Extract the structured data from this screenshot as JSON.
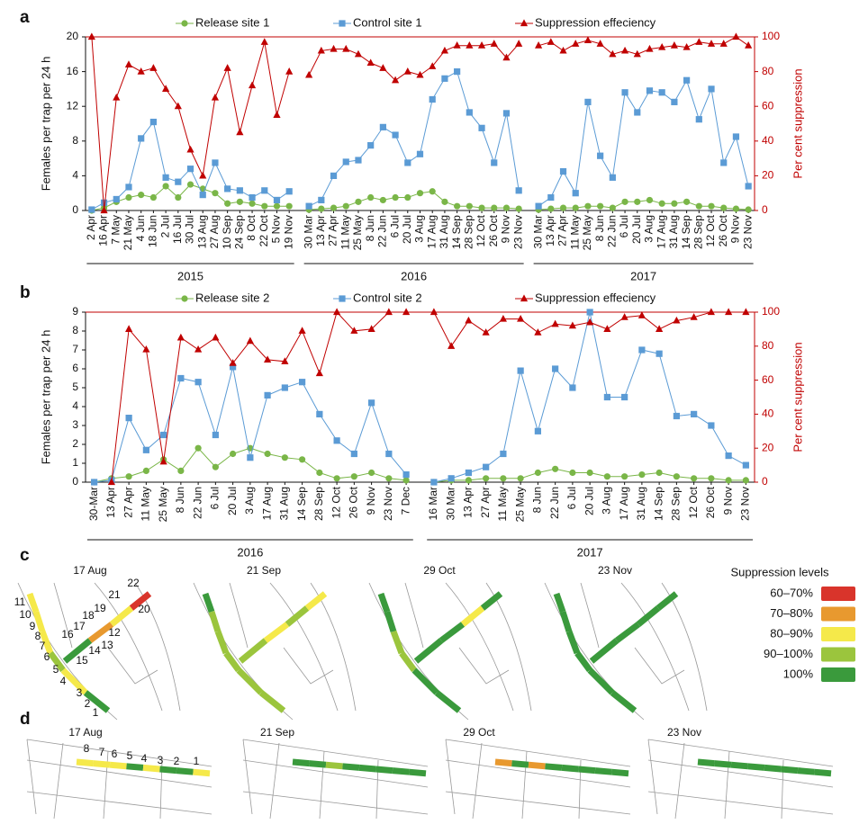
{
  "chart_data": [
    {
      "type": "line",
      "panel_label": "a",
      "y_label": "Females per trap per 24 h",
      "y2_label": "Per cent suppression",
      "ylim": [
        0,
        20
      ],
      "yticks": [
        0,
        4,
        8,
        12,
        16,
        20
      ],
      "y2lim": [
        0,
        100
      ],
      "y2ticks": [
        0,
        20,
        40,
        60,
        80,
        100
      ],
      "groups": [
        {
          "label": "2015",
          "categories": [
            "2 Apr",
            "16 Apr",
            "7 May",
            "21 May",
            "4 Jun",
            "18 Jun",
            "2 Jul",
            "16 Jul",
            "30 Jul",
            "13 Aug",
            "27 Aug",
            "10 Sep",
            "24 Sep",
            "8 Oct",
            "22 Oct",
            "5 Nov",
            "19 Nov"
          ]
        },
        {
          "label": "2016",
          "categories": [
            "30 Mar",
            "13 Apr",
            "27 Apr",
            "11 May",
            "25 May",
            "8 Jun",
            "22 Jun",
            "6 Jul",
            "20 Jul",
            "3 Aug",
            "17 Aug",
            "31 Aug",
            "14 Sep",
            "28 Sep",
            "12 Oct",
            "26 Oct",
            "9 Nov",
            "23 Nov"
          ]
        },
        {
          "label": "2017",
          "categories": [
            "30 Mar",
            "13 Apr",
            "27 Apr",
            "11 May",
            "25 May",
            "8 Jun",
            "22 Jun",
            "6 Jul",
            "20 Jul",
            "3 Aug",
            "17 Aug",
            "31 Aug",
            "14 Sep",
            "28 Sep",
            "12 Oct",
            "26 Oct",
            "9 Nov",
            "23 Nov"
          ]
        }
      ],
      "series": [
        {
          "name": "Release site 1",
          "color": "#7ab648",
          "marker": "circle",
          "axis": "y",
          "values": [
            [
              0,
              0.3,
              1,
              1.5,
              1.8,
              1.5,
              2.8,
              1.5,
              3,
              2.5,
              2,
              0.8,
              1,
              0.8,
              0.5,
              0.5,
              0.5
            ],
            [
              0.1,
              0.2,
              0.3,
              0.5,
              1,
              1.5,
              1.2,
              1.5,
              1.5,
              2,
              2.2,
              1,
              0.5,
              0.5,
              0.3,
              0.3,
              0.3,
              0.2
            ],
            [
              0.1,
              0.2,
              0.3,
              0.3,
              0.5,
              0.5,
              0.3,
              1,
              1,
              1.2,
              0.8,
              0.8,
              1,
              0.5,
              0.5,
              0.3,
              0.2,
              0.1
            ]
          ]
        },
        {
          "name": "Control site 1",
          "color": "#5b9bd5",
          "marker": "square",
          "axis": "y",
          "values": [
            [
              0.1,
              0.9,
              1.3,
              2.7,
              8.3,
              10.2,
              3.8,
              3.3,
              4.8,
              1.8,
              5.5,
              2.5,
              2.3,
              1.5,
              2.3,
              1.2,
              2.2
            ],
            [
              0.5,
              1.2,
              4,
              5.6,
              5.8,
              7.5,
              9.6,
              8.7,
              5.5,
              6.5,
              12.8,
              15.2,
              16,
              11.3,
              9.5,
              5.5,
              11.2,
              2.3
            ],
            [
              0.5,
              1.5,
              4.5,
              2,
              12.5,
              6.3,
              3.8,
              13.6,
              11.3,
              13.8,
              13.6,
              12.5,
              15,
              10.5,
              14,
              5.5,
              8.5,
              2.8
            ]
          ]
        },
        {
          "name": "Suppression effeciency",
          "color": "#c00000",
          "marker": "triangle",
          "axis": "y2",
          "values": [
            [
              100,
              0,
              65,
              84,
              80,
              82,
              70,
              60,
              35,
              20,
              65,
              82,
              45,
              72,
              97,
              55,
              80
            ],
            [
              78,
              92,
              93,
              93,
              90,
              85,
              82,
              75,
              80,
              78,
              83,
              92,
              95,
              95,
              95,
              96,
              88,
              96
            ],
            [
              95,
              97,
              92,
              96,
              98,
              96,
              90,
              92,
              90,
              93,
              94,
              95,
              94,
              97,
              96,
              96,
              100,
              95
            ]
          ]
        }
      ]
    },
    {
      "type": "line",
      "panel_label": "b",
      "y_label": "Females per trap per 24 h",
      "y2_label": "Per cent suppression",
      "ylim": [
        0,
        9
      ],
      "yticks": [
        0,
        1,
        2,
        3,
        4,
        5,
        6,
        7,
        8,
        9
      ],
      "y2lim": [
        0,
        100
      ],
      "y2ticks": [
        0,
        20,
        40,
        60,
        80,
        100
      ],
      "groups": [
        {
          "label": "2016",
          "categories": [
            "30-Mar",
            "13 Apr",
            "27 Apr",
            "11 May",
            "25 May",
            "8 Jun",
            "22 Jun",
            "6 Jul",
            "20 Jul",
            "3 Aug",
            "17 Aug",
            "31 Aug",
            "14 Sep",
            "28 Sep",
            "12 Oct",
            "26 Oct",
            "9 Nov",
            "23 Nov",
            "7 Dec"
          ]
        },
        {
          "label": "2017",
          "categories": [
            "16 Mar",
            "30 Mar",
            "13 Apr",
            "27 Apr",
            "11 May",
            "25 May",
            "8 Jun",
            "22 Jun",
            "6 Jul",
            "20 Jul",
            "3 Aug",
            "17 Aug",
            "31 Aug",
            "14 Sep",
            "28 Sep",
            "12 Oct",
            "26 Oct",
            "9 Nov",
            "23 Nov"
          ]
        }
      ],
      "series": [
        {
          "name": "Release site 2",
          "color": "#7ab648",
          "marker": "circle",
          "axis": "y",
          "values": [
            [
              0,
              0.2,
              0.3,
              0.6,
              1.2,
              0.6,
              1.8,
              0.8,
              1.5,
              1.8,
              1.5,
              1.3,
              1.2,
              0.5,
              0.2,
              0.3,
              0.5,
              0.2,
              0.1
            ],
            [
              0,
              0.1,
              0.1,
              0.2,
              0.2,
              0.2,
              0.5,
              0.7,
              0.5,
              0.5,
              0.3,
              0.3,
              0.4,
              0.5,
              0.3,
              0.2,
              0.2,
              0.1,
              0.1
            ]
          ]
        },
        {
          "name": "Control site 2",
          "color": "#5b9bd5",
          "marker": "square",
          "axis": "y",
          "values": [
            [
              0,
              0.1,
              3.4,
              1.7,
              2.5,
              5.5,
              5.3,
              2.5,
              6.1,
              1.3,
              4.6,
              5,
              5.3,
              3.6,
              2.2,
              1.5,
              4.2,
              1.5,
              0.4
            ],
            [
              0,
              0.2,
              0.5,
              0.8,
              1.5,
              5.9,
              2.7,
              6,
              5,
              9,
              4.5,
              4.5,
              7,
              6.8,
              3.5,
              3.6,
              3,
              1.4,
              0.9
            ]
          ]
        },
        {
          "name": "Suppression effeciency",
          "color": "#c00000",
          "marker": "triangle",
          "axis": "y2",
          "values": [
            [
              null,
              0,
              90,
              78,
              12,
              85,
              78,
              85,
              70,
              83,
              72,
              71,
              89,
              64,
              100,
              89,
              90,
              100,
              100
            ],
            [
              100,
              80,
              95,
              88,
              96,
              96,
              88,
              93,
              92,
              94,
              90,
              97,
              98,
              90,
              95,
              97,
              100,
              100,
              100
            ]
          ]
        }
      ]
    }
  ],
  "panel_c": {
    "label": "c",
    "dates": [
      "17 Aug",
      "21 Sep",
      "29 Oct",
      "23 Nov"
    ],
    "site_labels": [
      "1",
      "2",
      "3",
      "4",
      "5",
      "6",
      "7",
      "8",
      "9",
      "10",
      "11",
      "12",
      "13",
      "14",
      "15",
      "16",
      "17",
      "18",
      "19",
      "20",
      "21",
      "22"
    ],
    "legend": {
      "title": "Suppression levels",
      "items": [
        {
          "label": "60–70%",
          "color": "#d9342b"
        },
        {
          "label": "70–80%",
          "color": "#e8992f"
        },
        {
          "label": "80–90%",
          "color": "#f5e94a"
        },
        {
          "label": "90–100%",
          "color": "#9bc53d"
        },
        {
          "label": "100%",
          "color": "#3a9a3c"
        }
      ]
    }
  },
  "panel_d": {
    "label": "d",
    "dates": [
      "17 Aug",
      "21 Sep",
      "29 Oct",
      "23 Nov"
    ],
    "site_labels": [
      "1",
      "2",
      "3",
      "4",
      "5",
      "6",
      "7",
      "8"
    ]
  }
}
